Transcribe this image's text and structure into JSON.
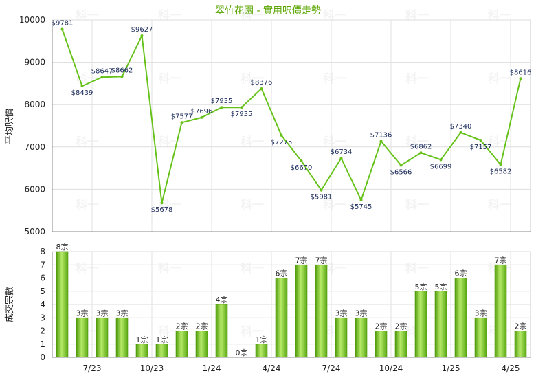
{
  "title": "翠竹花園 - 實用呎價走勢",
  "watermark": "科一",
  "colors": {
    "line": "#66c21a",
    "bar_dark": "#4f9a0a",
    "bar_light": "#b6ea6a",
    "title": "#5aa500"
  },
  "chart_data": [
    {
      "type": "line",
      "ylabel": "平均呎價",
      "ylim": [
        5000,
        10000
      ],
      "yticks": [
        "10000",
        "9000",
        "8000",
        "7000",
        "6000",
        "5000"
      ],
      "values": [
        9781,
        8439,
        8647,
        8662,
        9627,
        5678,
        7577,
        7696,
        7935,
        7935,
        8376,
        7275,
        6670,
        5981,
        6734,
        5745,
        7136,
        6566,
        6862,
        6699,
        7340,
        7157,
        6582,
        8616
      ],
      "labels": [
        "$9781",
        "$8439",
        "$8647",
        "$8662",
        "$9627",
        "$5678",
        "$7577",
        "$7696",
        "$7935",
        "$7935",
        "$8376",
        "$7275",
        "$6670",
        "$5981",
        "$6734",
        "$5745",
        "$7136",
        "$6566",
        "$6862",
        "$6699",
        "$7340",
        "$7157",
        "$6582",
        "$8616"
      ]
    },
    {
      "type": "bar",
      "ylabel": "成交宗數",
      "ylim": [
        0,
        8
      ],
      "yticks": [
        "8",
        "7",
        "6",
        "5",
        "4",
        "3",
        "2",
        "1",
        "0"
      ],
      "values": [
        8,
        3,
        3,
        3,
        1,
        1,
        2,
        2,
        4,
        0,
        1,
        6,
        7,
        7,
        3,
        3,
        2,
        2,
        5,
        5,
        6,
        3,
        7,
        2
      ],
      "labels": [
        "8宗",
        "3宗",
        "3宗",
        "3宗",
        "1宗",
        "1宗",
        "2宗",
        "2宗",
        "4宗",
        "0宗",
        "1宗",
        "6宗",
        "7宗",
        "7宗",
        "3宗",
        "3宗",
        "2宗",
        "2宗",
        "5宗",
        "5宗",
        "6宗",
        "3宗",
        "7宗",
        "2宗"
      ],
      "x_ticks": [
        "7/23",
        "10/23",
        "1/24",
        "4/24",
        "7/24",
        "10/24",
        "1/25",
        "4/25"
      ]
    }
  ]
}
